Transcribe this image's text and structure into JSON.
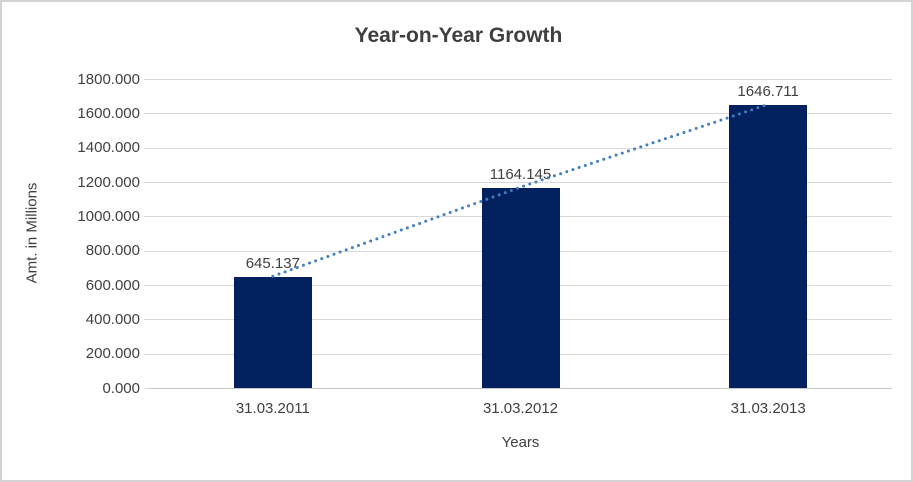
{
  "chart_data": {
    "type": "bar",
    "title": "Year-on-Year Growth",
    "xlabel": "Years",
    "ylabel": "Amt. in Millions",
    "categories": [
      "31.03.2011",
      "31.03.2012",
      "31.03.2013"
    ],
    "values": [
      645.137,
      1164.145,
      1646.711
    ],
    "value_labels": [
      "645.137",
      "1164.145",
      "1646.711"
    ],
    "y_ticks": [
      "0.000",
      "200.000",
      "400.000",
      "600.000",
      "800.000",
      "1000.000",
      "1200.000",
      "1400.000",
      "1600.000",
      "1800.000"
    ],
    "ylim": [
      0,
      1800
    ],
    "grid": true,
    "legend_position": "none",
    "trendline_style": "dotted",
    "colors": {
      "bar": "#02215e",
      "trendline": "#417dc1",
      "gridline": "#d9d9d9",
      "axis_line": "#c8c8c8",
      "text": "#404040",
      "title": "#3f3f3f",
      "frame_border": "#d3d3d3",
      "background": "#ffffff"
    }
  }
}
